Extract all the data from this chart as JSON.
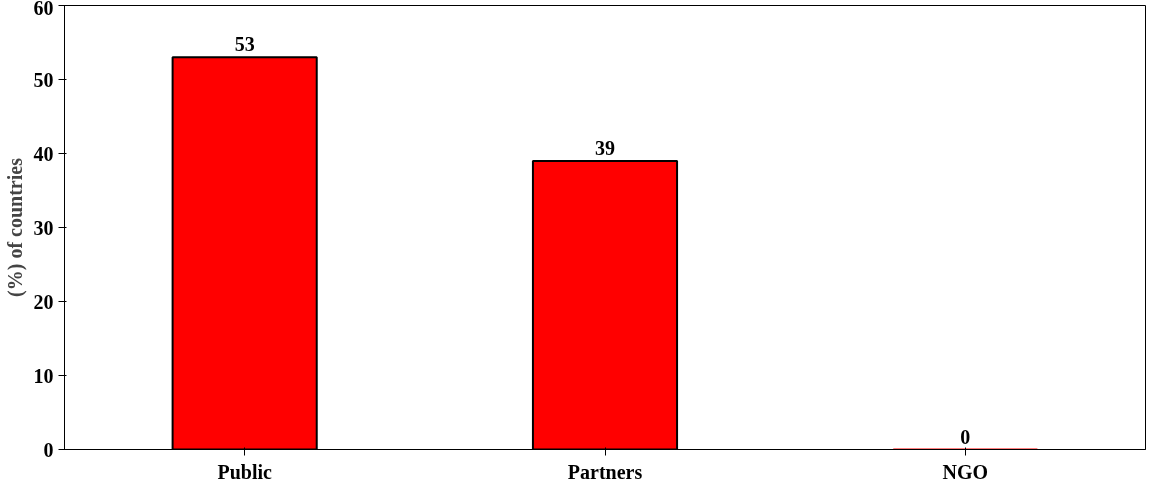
{
  "chart_data": {
    "type": "bar",
    "ylabel": "(%) of countries",
    "categories": [
      "Public",
      "Partners",
      "NGO"
    ],
    "values": [
      53,
      39,
      0
    ],
    "color": "#ff0000",
    "ylim": [
      0,
      60
    ],
    "yticks": [
      0,
      10,
      20,
      30,
      40,
      50,
      60
    ],
    "grid": false,
    "data_labels": true
  }
}
